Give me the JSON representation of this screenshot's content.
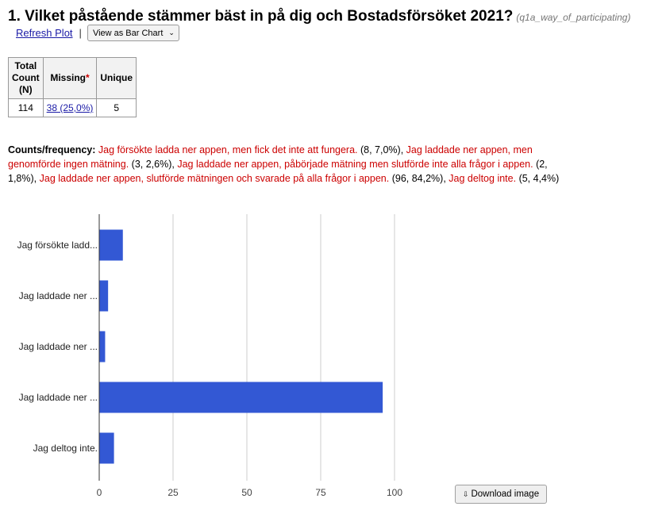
{
  "header": {
    "title": "1. Vilket påstående stämmer bäst in på dig och Bostadsförsöket 2021?",
    "variable": "(q1a_way_of_participating)"
  },
  "actions": {
    "refresh_label": "Refresh Plot",
    "separator": "|",
    "view_label": "View as Bar Chart"
  },
  "stats_table": {
    "headers": {
      "total_line1": "Total",
      "total_line2": "Count",
      "total_line3": "(N)",
      "missing": "Missing",
      "missing_star": "*",
      "unique": "Unique"
    },
    "values": {
      "total": "114",
      "missing": "38 (25,0%)",
      "unique": "5"
    }
  },
  "counts": {
    "label": "Counts/frequency:",
    "items": [
      {
        "text": "Jag försökte ladda ner appen, men fick det inte att fungera.",
        "stat": "(8, 7,0%),"
      },
      {
        "text": "Jag laddade ner appen, men genomförde ingen mätning.",
        "stat": "(3, 2,6%),"
      },
      {
        "text": "Jag laddade ner appen, påbörjade mätning men slutförde inte alla frågor i appen.",
        "stat": "(2, 1,8%),"
      },
      {
        "text": "Jag laddade ner appen, slutförde mätningen och svarade på alla frågor i appen.",
        "stat": "(96, 84,2%),"
      },
      {
        "text": "Jag deltog inte.",
        "stat": "(5, 4,4%)"
      }
    ]
  },
  "chart_data": {
    "type": "bar",
    "orientation": "horizontal",
    "categories": [
      "Jag försökte ladd...",
      "Jag laddade ner ...",
      "Jag laddade ner ...",
      "Jag laddade ner ...",
      "Jag deltog inte."
    ],
    "values": [
      8,
      3,
      2,
      96,
      5
    ],
    "xticks": [
      0,
      25,
      50,
      75,
      100
    ],
    "xlim": [
      0,
      100
    ],
    "bar_color": "#3358d4",
    "grid": true,
    "title": "",
    "xlabel": "",
    "ylabel": ""
  },
  "download": {
    "label": "Download image",
    "icon": "download-icon"
  }
}
